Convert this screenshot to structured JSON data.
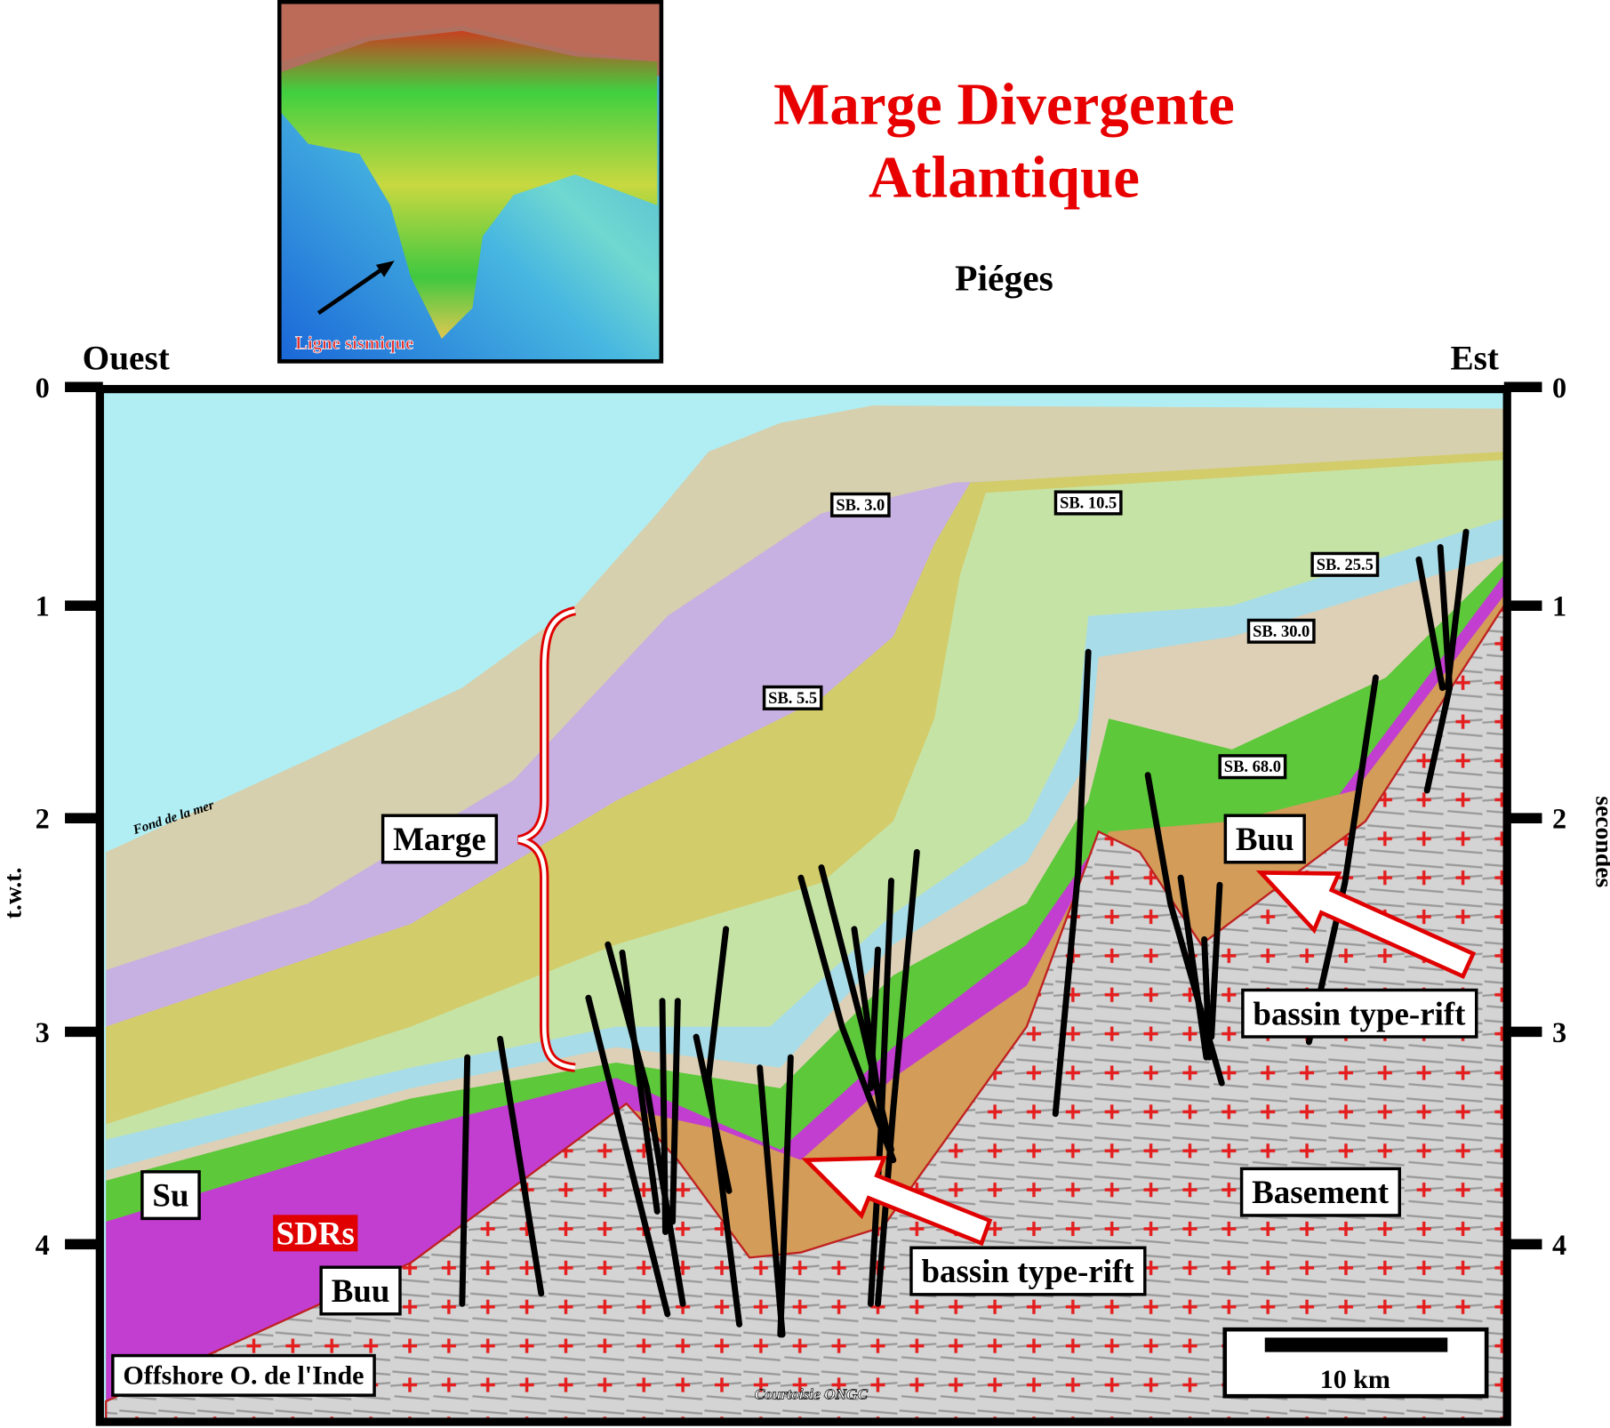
{
  "title": [
    "Marge Divergente",
    "Atlantique"
  ],
  "subtitle": "Piéges",
  "inset_map": {
    "label": "Ligne sismique"
  },
  "section": {
    "west_label": "Ouest",
    "east_label": "Est",
    "left_axis_label": "t.w.t.",
    "right_axis_label": "secondes",
    "ticks": [
      "0",
      "1",
      "2",
      "3",
      "4"
    ],
    "seafloor_label": "Fond de la mer",
    "sequence_boundaries": [
      "SB. 3.0",
      "SB. 10.5",
      "SB. 25.5",
      "SB. 30.0",
      "SB. 5.5",
      "SB. 68.0"
    ],
    "annotations": [
      "Marge",
      "Su",
      "SDRs",
      "Buu",
      "Buu",
      "bassin type-rift",
      "bassin type-rift",
      "Basement",
      "Offshore O. de l'Inde",
      "10 km"
    ],
    "credit": "Courtoisie ONGC"
  }
}
